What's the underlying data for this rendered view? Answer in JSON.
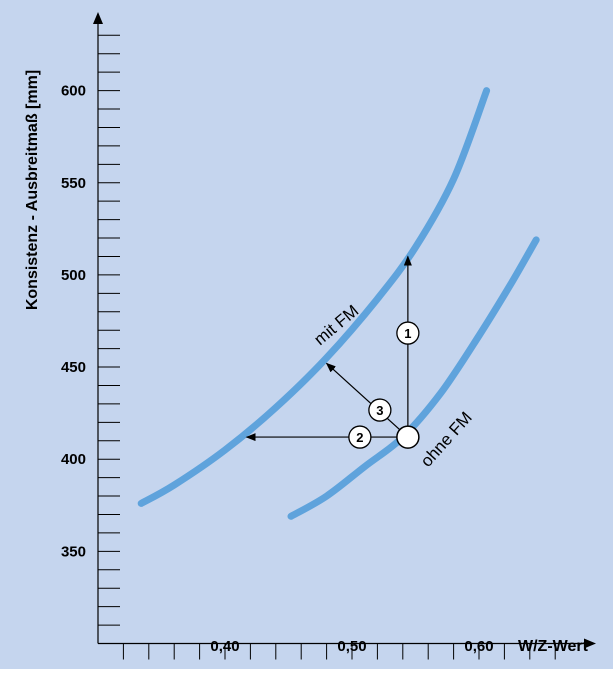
{
  "chart_data": {
    "type": "line",
    "xlabel": "W/Z-Wert",
    "ylabel": "Konsistenz - Ausbreitmaß [mm]",
    "xlim": [
      0.3,
      0.68
    ],
    "ylim": [
      300,
      640
    ],
    "x_ticks_labeled": [
      "0,40",
      "0,50",
      "0,60"
    ],
    "x_tick_values_labeled": [
      0.4,
      0.5,
      0.6
    ],
    "x_minor_step": 0.02,
    "y_ticks_labeled": [
      "350",
      "400",
      "450",
      "500",
      "550",
      "600"
    ],
    "y_tick_values_labeled": [
      350,
      400,
      450,
      500,
      550,
      600
    ],
    "y_minor_step": 10,
    "grid": false,
    "series": [
      {
        "name": "mit FM",
        "x": [
          0.334,
          0.36,
          0.4,
          0.44,
          0.48,
          0.52,
          0.55,
          0.58,
          0.606
        ],
        "y": [
          376,
          386,
          405,
          428,
          455,
          487,
          515,
          552,
          600
        ]
      },
      {
        "name": "ohne FM",
        "x": [
          0.452,
          0.48,
          0.51,
          0.54,
          0.57,
          0.6,
          0.625,
          0.645
        ],
        "y": [
          369,
          380,
          396,
          412,
          436,
          467,
          495,
          519
        ]
      }
    ],
    "annotations": [
      {
        "id": "1",
        "label": "1",
        "from": [
          0.544,
          412
        ],
        "to": [
          0.544,
          510
        ]
      },
      {
        "id": "2",
        "label": "2",
        "from": [
          0.544,
          412
        ],
        "to": [
          0.417,
          412
        ]
      },
      {
        "id": "3",
        "label": "3",
        "from": [
          0.544,
          412
        ],
        "to": [
          0.48,
          452
        ]
      }
    ],
    "start_point": {
      "x": 0.544,
      "y": 412
    }
  },
  "colors": {
    "background": "#c5d5ee",
    "curve": "#5fa3dc",
    "axis": "#000000"
  }
}
